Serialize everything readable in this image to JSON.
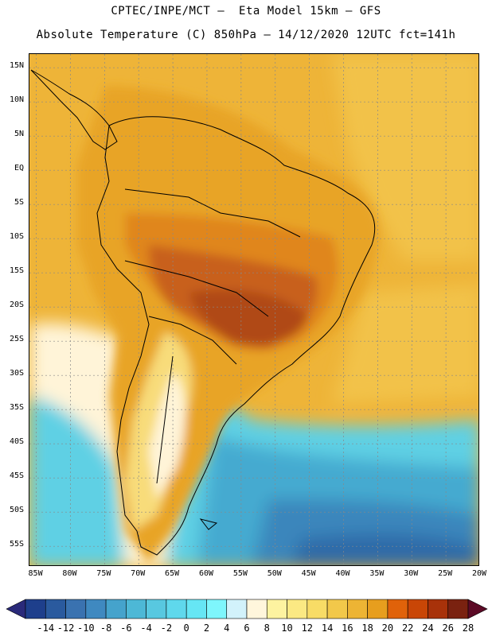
{
  "header": {
    "line1": "CPTEC/INPE/MCT –  Eta Model 15km – GFS",
    "line2": "Absolute Temperature (C) 850hPa – 14/12/2020 12UTC fct=141h"
  },
  "map": {
    "lat_labels": [
      "15N",
      "10N",
      "5N",
      "EQ",
      "5S",
      "10S",
      "15S",
      "20S",
      "25S",
      "30S",
      "35S",
      "40S",
      "45S",
      "50S",
      "55S"
    ],
    "lon_labels": [
      "85W",
      "80W",
      "75W",
      "70W",
      "65W",
      "60W",
      "55W",
      "50W",
      "45W",
      "40W",
      "35W",
      "30W",
      "25W",
      "20W"
    ],
    "lat_values": [
      15,
      10,
      5,
      0,
      -5,
      -10,
      -15,
      -20,
      -25,
      -30,
      -35,
      -40,
      -45,
      -50,
      -55
    ],
    "lon_values": [
      -85,
      -80,
      -75,
      -70,
      -65,
      -60,
      -55,
      -50,
      -45,
      -40,
      -35,
      -30,
      -25,
      -20
    ],
    "extent": {
      "west": -86,
      "east": -20,
      "north": 17,
      "south": -58
    },
    "legend_ticks": [
      "-14",
      "-12",
      "-10",
      "-8",
      "-6",
      "-4",
      "-2",
      "0",
      "2",
      "4",
      "6",
      "8",
      "10",
      "12",
      "14",
      "16",
      "18",
      "20",
      "22",
      "24",
      "26",
      "28"
    ],
    "legend_colors": [
      "#1e3f8c",
      "#2a5a9e",
      "#3a72b0",
      "#3f89c0",
      "#45a3cc",
      "#4db8d6",
      "#58c8e0",
      "#5fd8ec",
      "#66e6f4",
      "#7ef6fc",
      "#d2f2fb",
      "#fff6dc",
      "#fdf3a0",
      "#fbe983",
      "#f8dc66",
      "#f2c84a",
      "#edb434",
      "#e79e1e",
      "#e0620a",
      "#c94606",
      "#a8320a",
      "#7a2210"
    ],
    "continent_colors": {
      "warm_core": "#b04818",
      "hot": "#c8601c",
      "warm": "#e0861e",
      "mild": "#e8a428",
      "sea_warm": "#eeb438",
      "sea_mild": "#f2c24a",
      "cool_land": "#f8dc7a",
      "pale": "#fff4d8",
      "cold_sea_1": "#5fd0e4",
      "cold_sea_2": "#45aad0",
      "cold_sea_3": "#3a86bc",
      "cold_sea_4": "#2f6aa8"
    }
  }
}
